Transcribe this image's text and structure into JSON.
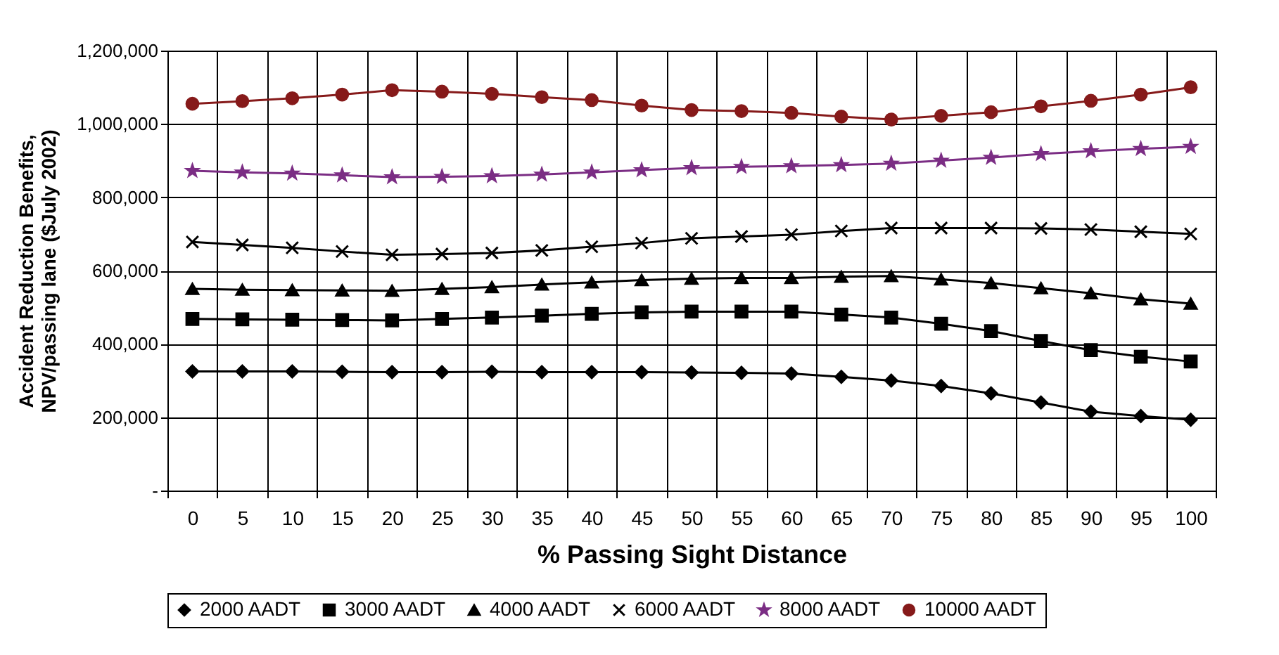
{
  "chart_data": {
    "type": "line",
    "xlabel": "% Passing Sight Distance",
    "ylabel": "Accident Reduction Benefits,\nNPV/passing lane ($July 2002)",
    "categories": [
      "0",
      "5",
      "10",
      "15",
      "20",
      "25",
      "30",
      "35",
      "40",
      "45",
      "50",
      "55",
      "60",
      "65",
      "70",
      "75",
      "80",
      "85",
      "90",
      "95",
      "100"
    ],
    "ylim": [
      0,
      1200000
    ],
    "yticks": [
      {
        "value": 0,
        "label": "-"
      },
      {
        "value": 200000,
        "label": "200,000"
      },
      {
        "value": 400000,
        "label": "400,000"
      },
      {
        "value": 600000,
        "label": "600,000"
      },
      {
        "value": 800000,
        "label": "800,000"
      },
      {
        "value": 1000000,
        "label": "1,000,000"
      },
      {
        "value": 1200000,
        "label": "1,200,000"
      }
    ],
    "grid": true,
    "legend": "bottom",
    "series": [
      {
        "name": "2000 AADT",
        "color": "#000000",
        "marker": "diamond",
        "values": [
          325000,
          325000,
          325000,
          324000,
          323000,
          323000,
          324000,
          323000,
          323000,
          323000,
          322000,
          321000,
          319000,
          310000,
          300000,
          285000,
          265000,
          240000,
          215000,
          203000,
          193000
        ]
      },
      {
        "name": "3000 AADT",
        "color": "#000000",
        "marker": "square",
        "values": [
          468000,
          467000,
          466000,
          465000,
          464000,
          468000,
          472000,
          477000,
          482000,
          486000,
          488000,
          488000,
          488000,
          480000,
          472000,
          455000,
          435000,
          408000,
          383000,
          365000,
          352000
        ]
      },
      {
        "name": "4000 AADT",
        "color": "#000000",
        "marker": "triangle",
        "values": [
          550000,
          548000,
          547000,
          546000,
          545000,
          550000,
          555000,
          562000,
          568000,
          574000,
          578000,
          580000,
          580000,
          583000,
          585000,
          576000,
          566000,
          552000,
          538000,
          522000,
          510000
        ]
      },
      {
        "name": "6000 AADT",
        "color": "#000000",
        "marker": "cross",
        "values": [
          678000,
          670000,
          662000,
          652000,
          643000,
          645000,
          648000,
          655000,
          665000,
          675000,
          688000,
          693000,
          698000,
          708000,
          716000,
          716000,
          716000,
          715000,
          712000,
          706000,
          700000
        ]
      },
      {
        "name": "8000 AADT",
        "color": "#7b2d84",
        "marker": "star",
        "values": [
          872000,
          868000,
          865000,
          860000,
          855000,
          856000,
          858000,
          862000,
          868000,
          874000,
          880000,
          883000,
          885000,
          888000,
          892000,
          900000,
          908000,
          918000,
          926000,
          932000,
          938000
        ]
      },
      {
        "name": "10000 AADT",
        "color": "#861a1a",
        "marker": "circle",
        "values": [
          1055000,
          1062000,
          1070000,
          1080000,
          1092000,
          1088000,
          1082000,
          1073000,
          1065000,
          1050000,
          1038000,
          1035000,
          1030000,
          1020000,
          1012000,
          1022000,
          1032000,
          1048000,
          1063000,
          1080000,
          1100000
        ]
      }
    ]
  }
}
